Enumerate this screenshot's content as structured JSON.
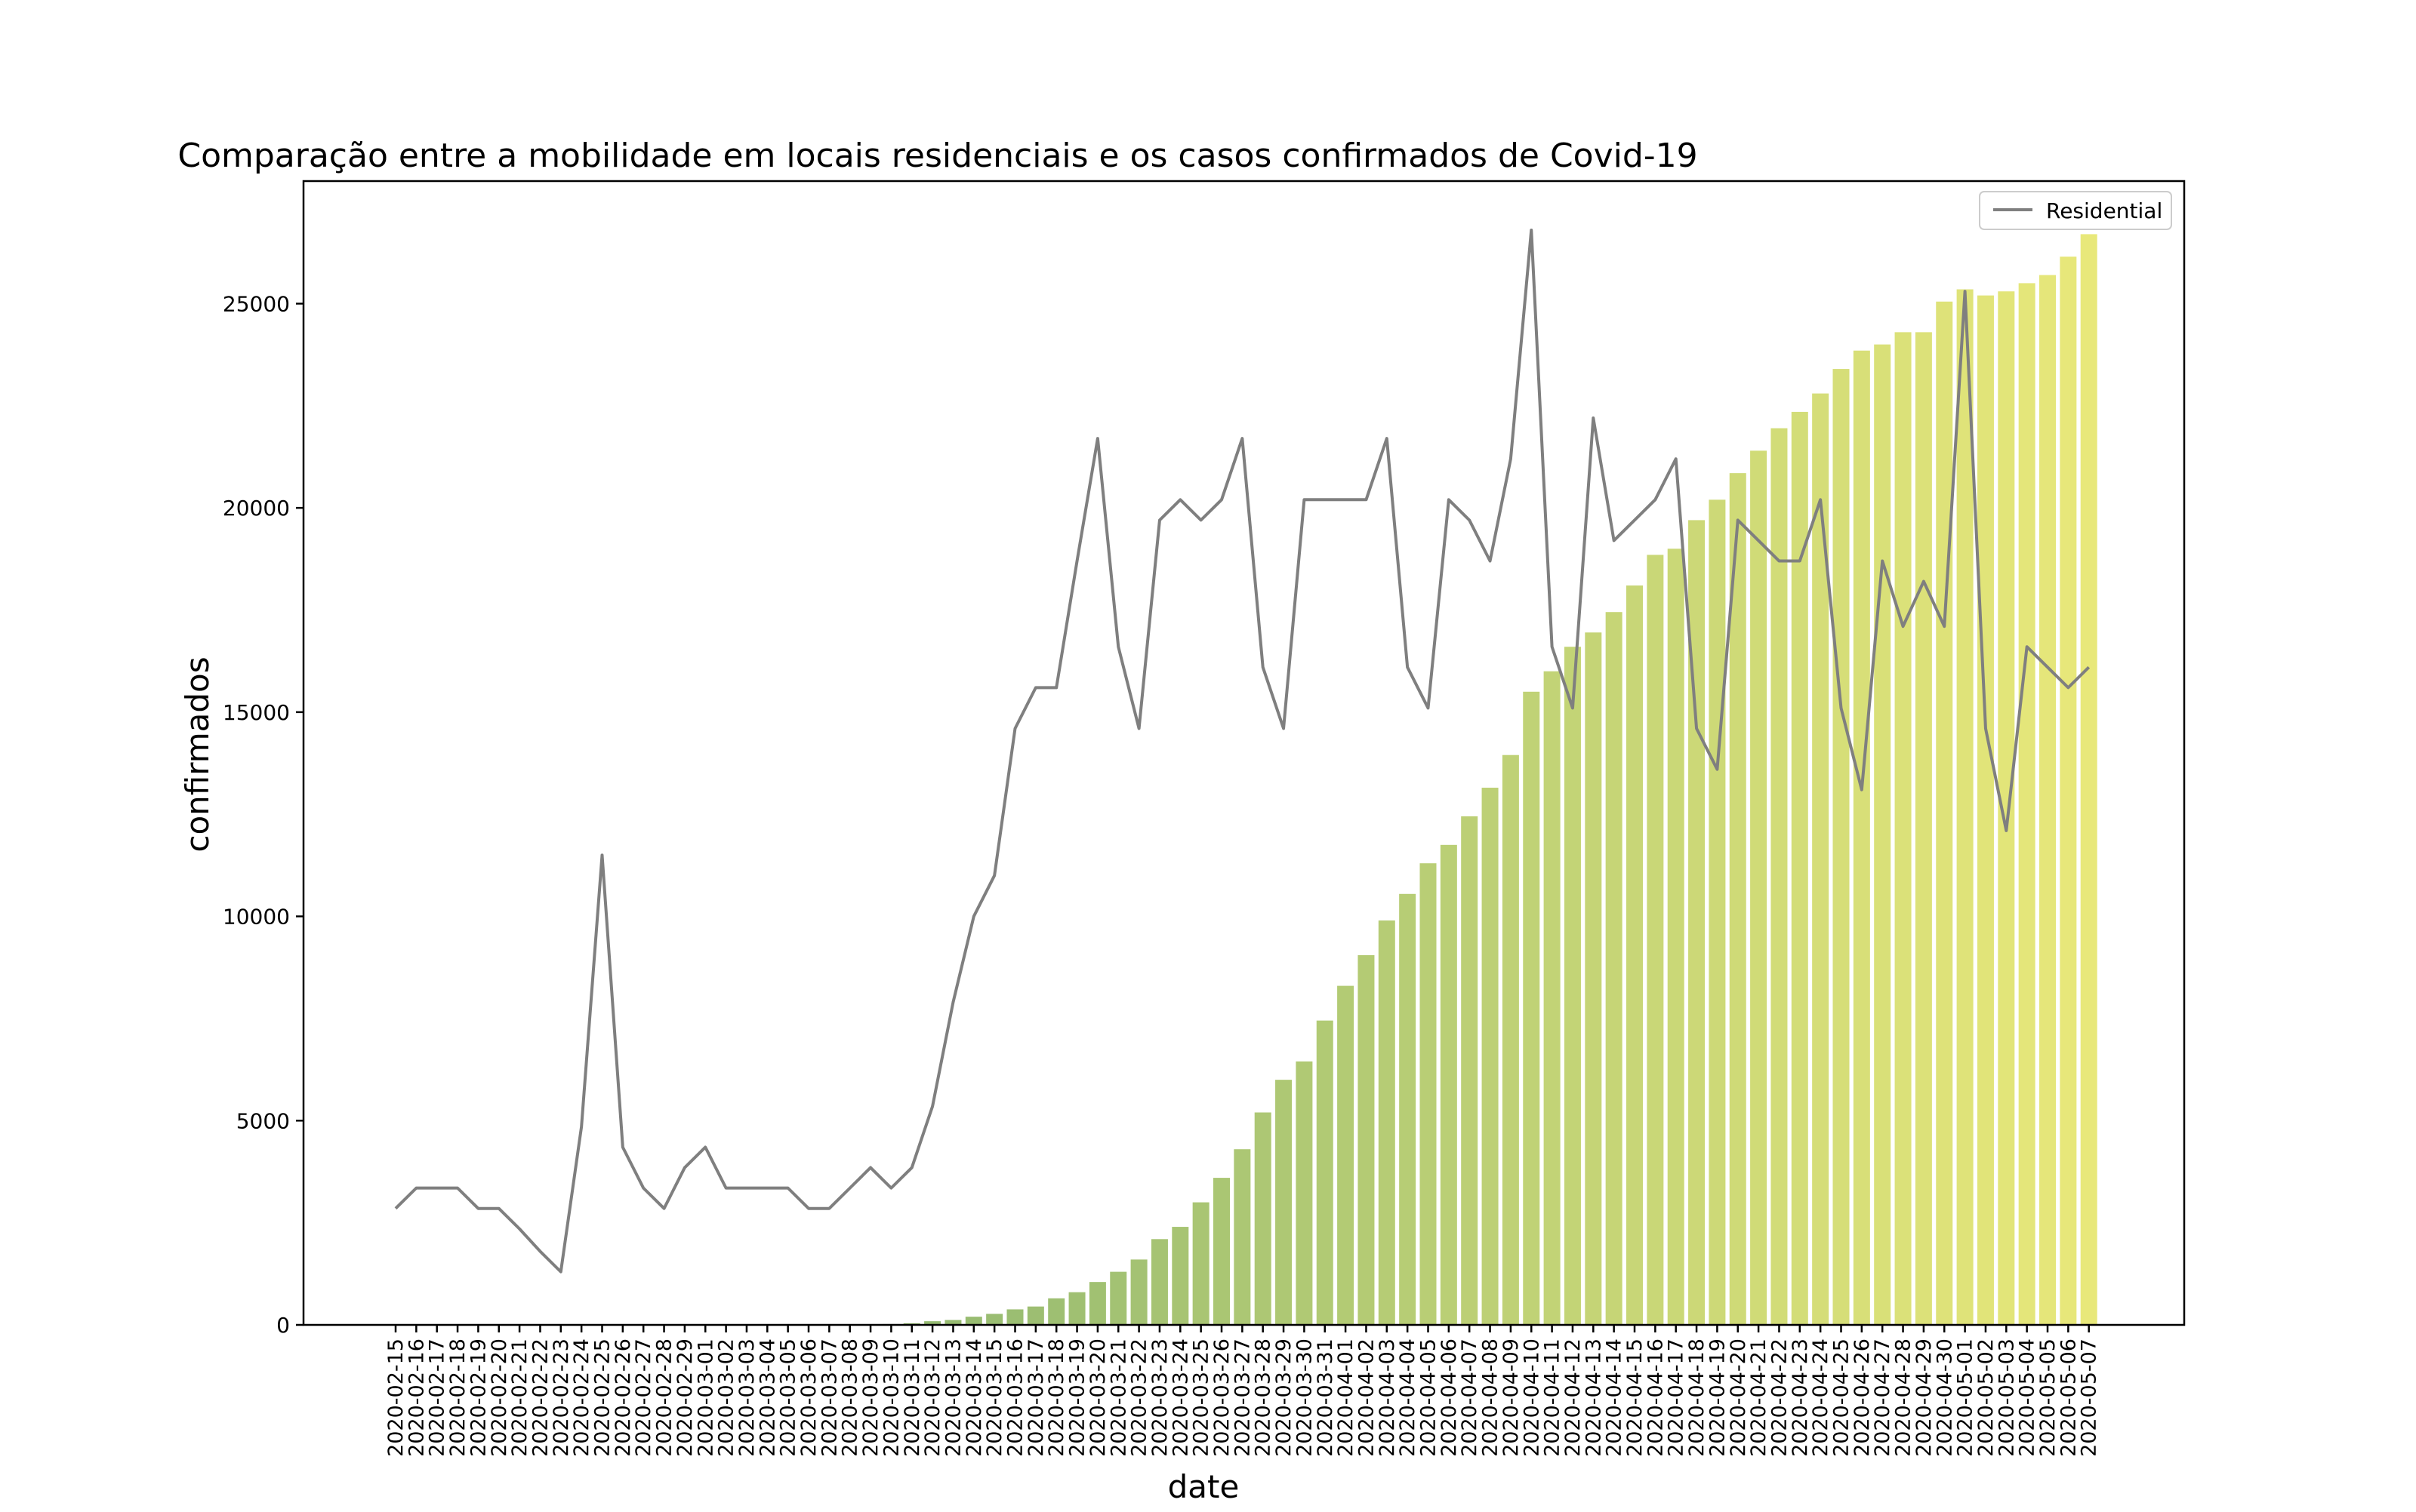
{
  "chart_data": {
    "type": "bar",
    "title": "Comparação entre a mobilidade em locais residenciais e os casos confirmados de Covid-19",
    "xlabel": "date",
    "ylabel": "confirmados",
    "ylim": [
      0,
      28000
    ],
    "yticks": [
      0,
      5000,
      10000,
      15000,
      20000,
      25000
    ],
    "legend_position": "top-right",
    "colors": {
      "bar_start": "#6fa56d",
      "bar_end": "#e8e87a",
      "line": "#7f7f7f",
      "axes": "#000000"
    },
    "categories": [
      "2020-02-15",
      "2020-02-16",
      "2020-02-17",
      "2020-02-18",
      "2020-02-19",
      "2020-02-20",
      "2020-02-21",
      "2020-02-22",
      "2020-02-23",
      "2020-02-24",
      "2020-02-25",
      "2020-02-26",
      "2020-02-27",
      "2020-02-28",
      "2020-02-29",
      "2020-03-01",
      "2020-03-02",
      "2020-03-03",
      "2020-03-04",
      "2020-03-05",
      "2020-03-06",
      "2020-03-07",
      "2020-03-08",
      "2020-03-09",
      "2020-03-10",
      "2020-03-11",
      "2020-03-12",
      "2020-03-13",
      "2020-03-14",
      "2020-03-15",
      "2020-03-16",
      "2020-03-17",
      "2020-03-18",
      "2020-03-19",
      "2020-03-20",
      "2020-03-21",
      "2020-03-22",
      "2020-03-23",
      "2020-03-24",
      "2020-03-25",
      "2020-03-26",
      "2020-03-27",
      "2020-03-28",
      "2020-03-29",
      "2020-03-30",
      "2020-03-31",
      "2020-04-01",
      "2020-04-02",
      "2020-04-03",
      "2020-04-04",
      "2020-04-05",
      "2020-04-06",
      "2020-04-07",
      "2020-04-08",
      "2020-04-09",
      "2020-04-10",
      "2020-04-11",
      "2020-04-12",
      "2020-04-13",
      "2020-04-14",
      "2020-04-15",
      "2020-04-16",
      "2020-04-17",
      "2020-04-18",
      "2020-04-19",
      "2020-04-20",
      "2020-04-21",
      "2020-04-22",
      "2020-04-23",
      "2020-04-24",
      "2020-04-25",
      "2020-04-26",
      "2020-04-27",
      "2020-04-28",
      "2020-04-29",
      "2020-04-30",
      "2020-05-01",
      "2020-05-02",
      "2020-05-03",
      "2020-05-04",
      "2020-05-05",
      "2020-05-06",
      "2020-05-07"
    ],
    "series": [
      {
        "type": "bar",
        "values": [
          0,
          0,
          0,
          0,
          0,
          0,
          0,
          0,
          0,
          0,
          0,
          0,
          0,
          0,
          0,
          0,
          0,
          0,
          0,
          0,
          0,
          0,
          0,
          10,
          20,
          40,
          90,
          120,
          200,
          270,
          380,
          450,
          650,
          800,
          1050,
          1300,
          1600,
          2100,
          2400,
          3000,
          3600,
          4300,
          5200,
          6000,
          6450,
          7450,
          8300,
          9050,
          9900,
          10550,
          11300,
          11750,
          12450,
          13150,
          13950,
          15500,
          16000,
          16600,
          16950,
          17450,
          18100,
          18850,
          19000,
          19700,
          20200,
          20850,
          21400,
          21950,
          22350,
          22800,
          23400,
          23850,
          24000,
          24300,
          24300,
          25050,
          25350,
          25200,
          25300,
          25500,
          25700,
          26150,
          26700
        ]
      },
      {
        "type": "line",
        "name": "Residential",
        "values": [
          2850,
          3350,
          3350,
          3350,
          2850,
          2850,
          2350,
          1800,
          1300,
          4850,
          11500,
          4350,
          3350,
          2850,
          3850,
          4350,
          3350,
          3350,
          3350,
          3350,
          2850,
          2850,
          3350,
          3850,
          3350,
          3850,
          5350,
          7900,
          10000,
          11000,
          14600,
          15600,
          15600,
          18700,
          21700,
          16600,
          14600,
          19700,
          20200,
          19700,
          20200,
          21700,
          16100,
          14600,
          20200,
          20200,
          20200,
          20200,
          21700,
          16100,
          15100,
          20200,
          19700,
          18700,
          21200,
          26800,
          16600,
          15100,
          22200,
          19200,
          19700,
          20200,
          21200,
          14600,
          13600,
          19700,
          19200,
          18700,
          18700,
          20200,
          15100,
          13100,
          18700,
          17100,
          18200,
          17100,
          25300,
          14600,
          12100,
          16600,
          16100,
          15600,
          16100
        ]
      }
    ]
  }
}
